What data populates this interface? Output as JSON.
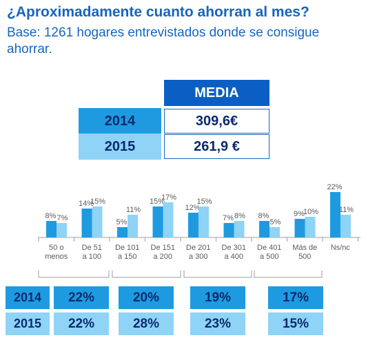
{
  "header": {
    "title": "¿Aproximadamente cuanto ahorran al mes?",
    "subtitle": "Base: 1261 hogares entrevistados donde se consigue ahorrar."
  },
  "media_table": {
    "header": "MEDIA",
    "rows": [
      {
        "year": "2014",
        "value": "309,6€"
      },
      {
        "year": "2015",
        "value": "261,9 €"
      }
    ]
  },
  "colors": {
    "y2014": "#1e9be0",
    "y2015": "#8fd3f7",
    "header": "#0b5fc4",
    "text": "#0a2a6e"
  },
  "chart_data": {
    "type": "bar",
    "categories": [
      "50 o menos",
      "De 51 a 100",
      "De 101 a 150",
      "De 151 a 200",
      "De 201 a 300",
      "De 301 a 400",
      "De 401 a 500",
      "Más de 500",
      "Ns/nc"
    ],
    "series": [
      {
        "name": "2014",
        "values": [
          8,
          14,
          5,
          15,
          12,
          7,
          8,
          9,
          22
        ],
        "labels": [
          "8%",
          "14%",
          "5%",
          "15%",
          "12%",
          "7%",
          "8%",
          "9%",
          "22%"
        ]
      },
      {
        "name": "2015",
        "values": [
          7,
          15,
          11,
          17,
          15,
          8,
          5,
          10,
          11
        ],
        "labels": [
          "7%",
          "15%",
          "11%",
          "17%",
          "15%",
          "8%",
          "5%",
          "10%",
          "11%"
        ]
      }
    ],
    "ylim": [
      0,
      25
    ],
    "grid": false
  },
  "groups": {
    "rows": [
      {
        "year": "2014",
        "values": [
          "22%",
          "20%",
          "19%",
          "17%"
        ]
      },
      {
        "year": "2015",
        "values": [
          "22%",
          "28%",
          "23%",
          "15%"
        ]
      }
    ]
  }
}
